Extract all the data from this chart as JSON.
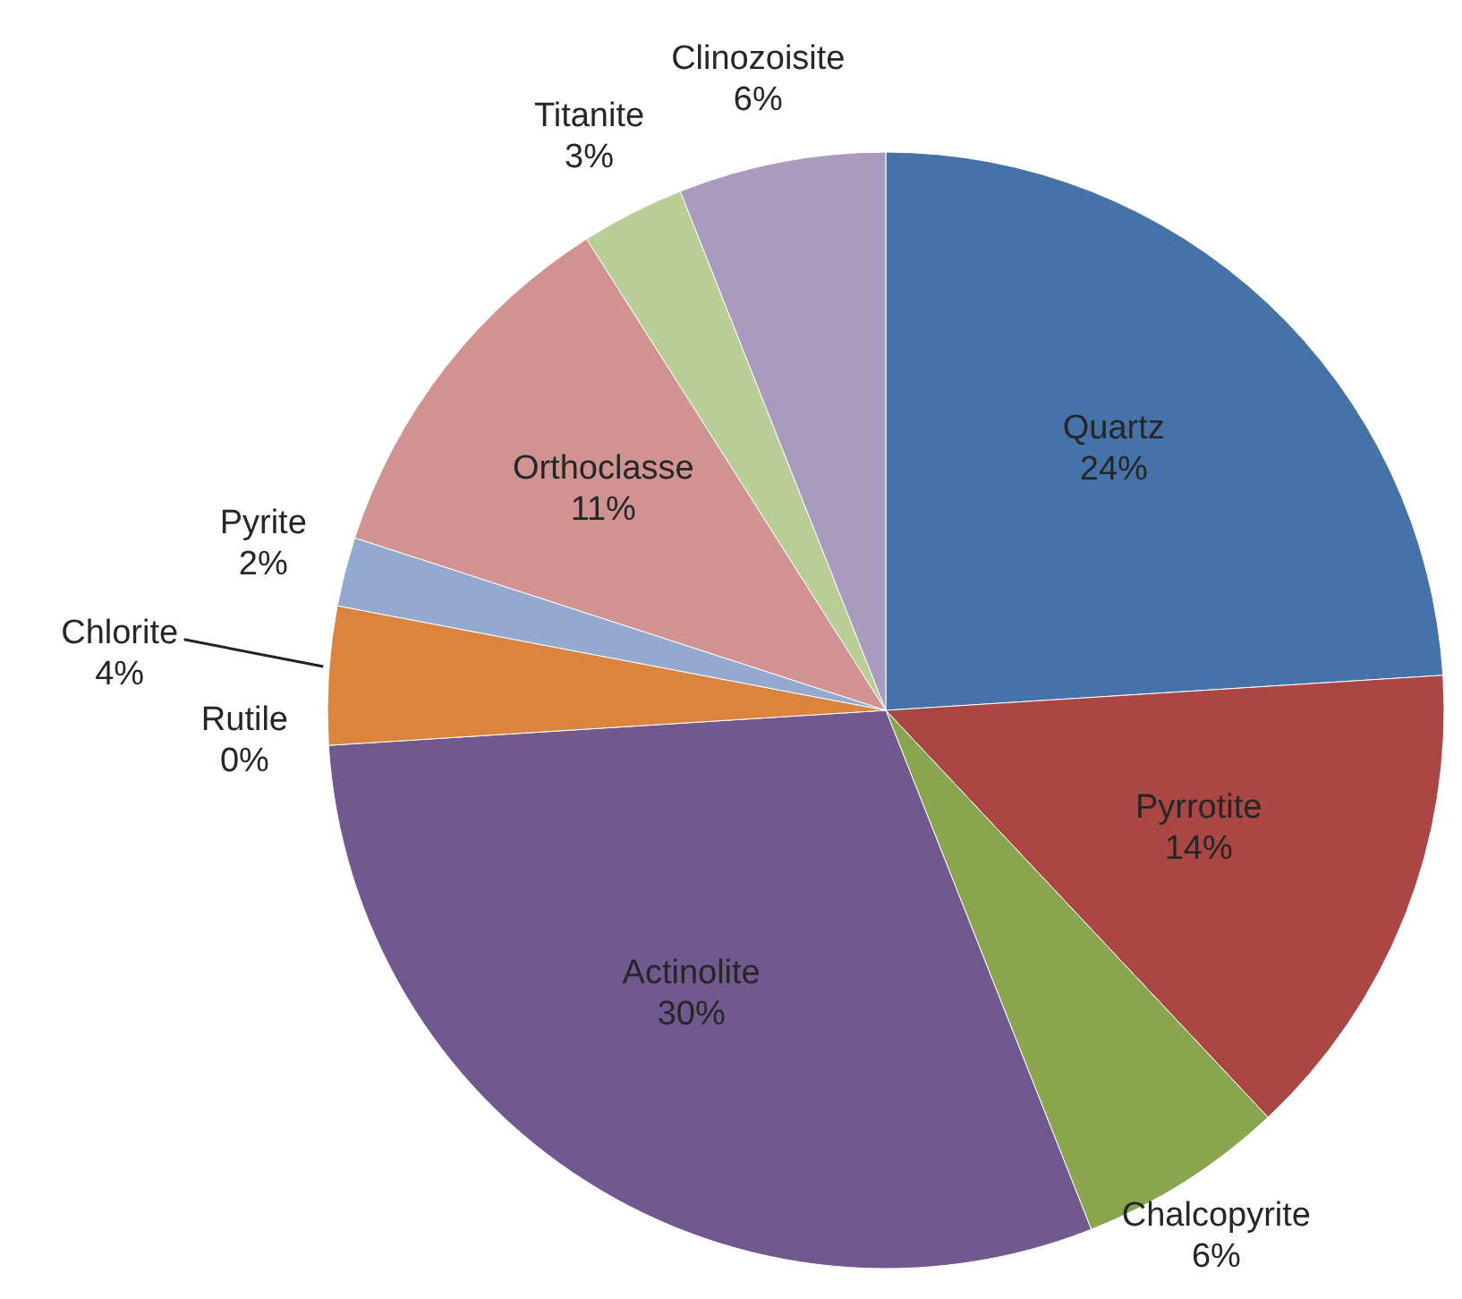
{
  "chart_data": {
    "type": "pie",
    "categories": [
      "Quartz",
      "Pyrrotite",
      "Chalcopyrite",
      "Actinolite",
      "Rutile",
      "Chlorite",
      "Pyrite",
      "Orthoclasse",
      "Titanite",
      "Clinozoisite"
    ],
    "values": [
      24,
      14,
      6,
      30,
      0,
      4,
      2,
      11,
      3,
      6
    ],
    "value_labels": [
      "24%",
      "14%",
      "6%",
      "30%",
      "0%",
      "4%",
      "2%",
      "11%",
      "3%",
      "6%"
    ],
    "colors": [
      "#4672aa",
      "#aa4644",
      "#89a54e",
      "#71588f",
      "#4198af",
      "#db843d",
      "#93a9cf",
      "#d19392",
      "#b9cd96",
      "#a99bbd"
    ],
    "legend": false
  }
}
